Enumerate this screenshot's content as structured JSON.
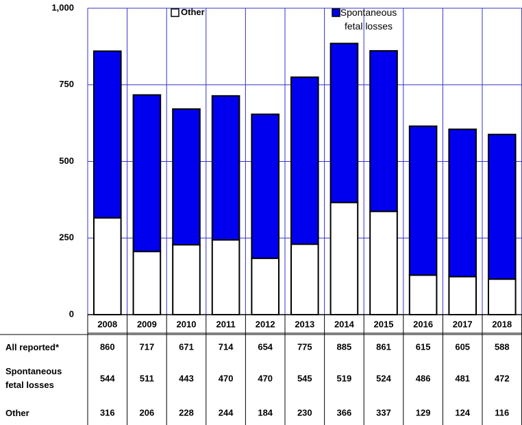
{
  "chart_data": {
    "type": "stacked_bar",
    "categories": [
      "2008",
      "2009",
      "2010",
      "2011",
      "2012",
      "2013",
      "2014",
      "2015",
      "2016",
      "2017",
      "2018"
    ],
    "series": [
      {
        "name": "Other",
        "color": "#ffffff",
        "values": [
          316,
          206,
          228,
          244,
          184,
          230,
          366,
          337,
          129,
          124,
          116
        ]
      },
      {
        "name": "Spontaneous fetal losses",
        "color": "#0000ee",
        "values": [
          544,
          511,
          443,
          470,
          470,
          545,
          519,
          524,
          486,
          481,
          472
        ]
      }
    ],
    "total_label": "All reported*",
    "totals": [
      860,
      717,
      671,
      714,
      654,
      775,
      885,
      861,
      615,
      605,
      588
    ],
    "ylim": [
      0,
      1000
    ],
    "yticks": [
      0,
      250,
      500,
      750,
      {
        "value": 1000,
        "label": "1,000"
      }
    ],
    "grid": true,
    "grid_color": "#3333cc"
  }
}
